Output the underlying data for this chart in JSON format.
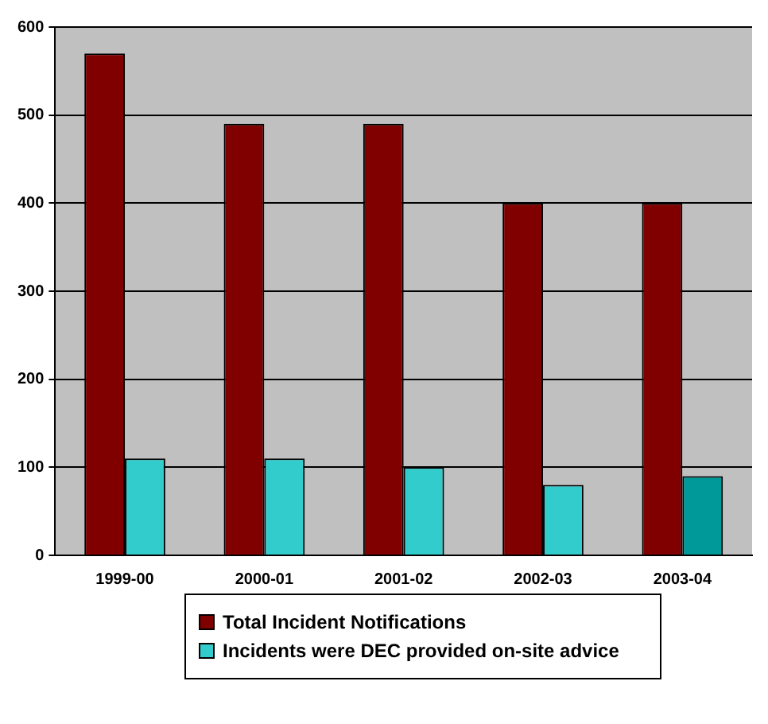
{
  "chart_data": {
    "type": "bar",
    "categories": [
      "1999-00",
      "2000-01",
      "2001-02",
      "2002-03",
      "2003-04"
    ],
    "series": [
      {
        "name": "Total Incident Notifications",
        "color": "#800000",
        "values": [
          570,
          490,
          490,
          400,
          400
        ]
      },
      {
        "name": "Incidents were DEC provided on-site advice",
        "color": "#33cccc",
        "colors": [
          "#33cccc",
          "#33cccc",
          "#33cccc",
          "#33cccc",
          "#009999"
        ],
        "values": [
          110,
          110,
          100,
          80,
          90
        ]
      }
    ],
    "ylim": [
      0,
      600
    ],
    "yticks": [
      0,
      100,
      200,
      300,
      400,
      500,
      600
    ],
    "grid": "y",
    "legend": "bottom"
  }
}
